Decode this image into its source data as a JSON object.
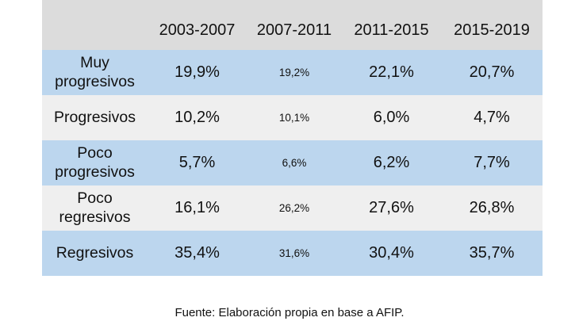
{
  "table": {
    "headers": [
      "",
      "2003-2007",
      "2007-2011",
      "2011-2015",
      "2015-2019"
    ],
    "rows": [
      {
        "label": "Muy progresivos",
        "values": [
          "19,9%",
          "19,2%",
          "22,1%",
          "20,7%"
        ]
      },
      {
        "label": "Progresivos",
        "values": [
          "10,2%",
          "10,1%",
          "6,0%",
          "4,7%"
        ]
      },
      {
        "label": "Poco progresivos",
        "values": [
          "5,7%",
          "6,6%",
          "6,2%",
          "7,7%"
        ]
      },
      {
        "label": "Poco regresivos",
        "values": [
          "16,1%",
          "26,2%",
          "27,6%",
          "26,8%"
        ]
      },
      {
        "label": "Regresivos",
        "values": [
          "35,4%",
          "31,6%",
          "30,4%",
          "35,7%"
        ]
      }
    ]
  },
  "source": "Fuente: Elaboración propia en base a AFIP.",
  "colors": {
    "header_bg": "#dcdcdc",
    "blue_row": "#bcd6ee",
    "grey_row": "#efefef"
  }
}
